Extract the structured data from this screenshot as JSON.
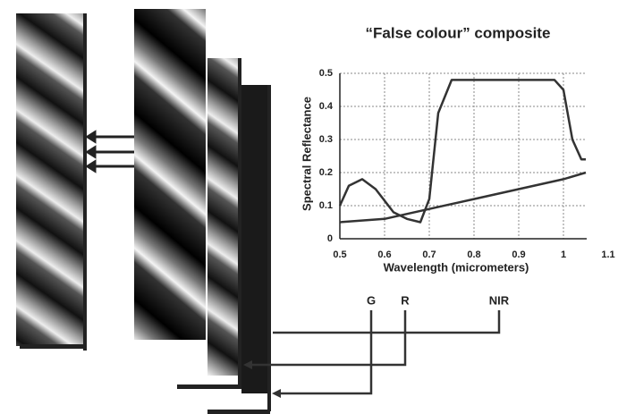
{
  "chart_data": {
    "type": "line",
    "title": "“False colour” composite",
    "xlabel": "Wavelength (micrometers)",
    "ylabel": "Spectral Reflectance",
    "xlim": [
      0.5,
      1.1
    ],
    "xticks": [
      0.5,
      0.6,
      0.7,
      0.8,
      0.9,
      1,
      1.1
    ],
    "ylim": [
      0,
      0.5
    ],
    "yticks": [
      0,
      0.1,
      0.2,
      0.3,
      0.4,
      0.5
    ],
    "grid": true,
    "series": [
      {
        "color": "#333333",
        "x": [
          0.5,
          0.52,
          0.55,
          0.58,
          0.62,
          0.65,
          0.68,
          0.7,
          0.72,
          0.75,
          0.8,
          0.9,
          0.98,
          1.0,
          1.02,
          1.04,
          1.05
        ],
        "values": [
          0.1,
          0.16,
          0.18,
          0.15,
          0.08,
          0.06,
          0.05,
          0.12,
          0.38,
          0.48,
          0.48,
          0.48,
          0.48,
          0.45,
          0.3,
          0.24,
          0.24
        ]
      },
      {
        "color": "#333333",
        "x": [
          0.5,
          0.6,
          0.7,
          0.8,
          0.9,
          1.0,
          1.05
        ],
        "values": [
          0.05,
          0.06,
          0.09,
          0.12,
          0.15,
          0.18,
          0.2
        ]
      }
    ]
  },
  "bands": [
    "G",
    "R",
    "NIR"
  ]
}
